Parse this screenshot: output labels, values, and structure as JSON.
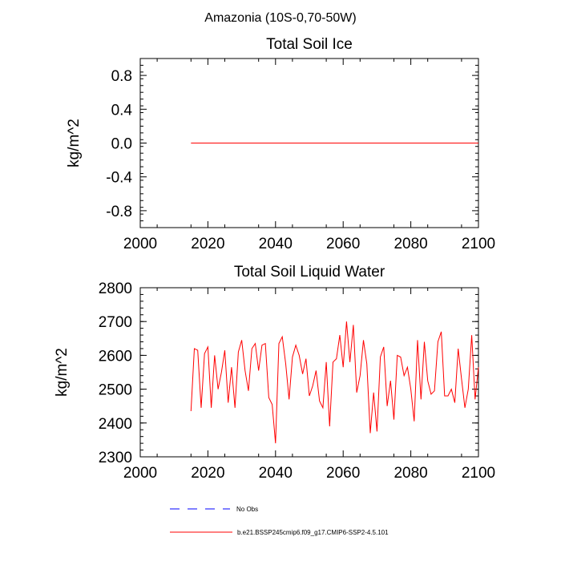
{
  "figure_title": "Amazonia (10S-0,70-50W)",
  "colors": {
    "model": "#ff0000",
    "obs": "#0000ff",
    "axis": "#000000"
  },
  "legend": {
    "obs_label": "No Obs",
    "model_label": "b.e21.BSSP245cmip6.f09_g17.CMIP6-SSP2-4.5.101"
  },
  "chart_data": [
    {
      "type": "line",
      "title": "Total Soil Ice",
      "xlabel": "",
      "ylabel": "kg/m^2",
      "xlim": [
        2000,
        2100
      ],
      "ylim": [
        -1.0,
        1.0
      ],
      "x_ticks": [
        2000,
        2020,
        2040,
        2060,
        2080,
        2100
      ],
      "y_ticks": [
        -0.8,
        -0.4,
        0.0,
        0.4,
        0.8
      ],
      "y_tick_labels": [
        "-0.8",
        "-0.4",
        "0.0",
        "0.4",
        "0.8"
      ],
      "series": [
        {
          "name": "b.e21.BSSP245cmip6.f09_g17.CMIP6-SSP2-4.5.101",
          "x_start": 2015,
          "values": [
            0,
            0,
            0,
            0,
            0,
            0,
            0,
            0,
            0,
            0,
            0,
            0,
            0,
            0,
            0,
            0,
            0,
            0,
            0,
            0,
            0,
            0,
            0,
            0,
            0,
            0,
            0,
            0,
            0,
            0,
            0,
            0,
            0,
            0,
            0,
            0,
            0,
            0,
            0,
            0,
            0,
            0,
            0,
            0,
            0,
            0,
            0,
            0,
            0,
            0,
            0,
            0,
            0,
            0,
            0,
            0,
            0,
            0,
            0,
            0,
            0,
            0,
            0,
            0,
            0,
            0,
            0,
            0,
            0,
            0,
            0,
            0,
            0,
            0,
            0,
            0,
            0,
            0,
            0,
            0,
            0,
            0,
            0,
            0,
            0,
            0
          ]
        }
      ]
    },
    {
      "type": "line",
      "title": "Total Soil Liquid Water",
      "xlabel": "",
      "ylabel": "kg/m^2",
      "xlim": [
        2000,
        2100
      ],
      "ylim": [
        2300,
        2800
      ],
      "x_ticks": [
        2000,
        2020,
        2040,
        2060,
        2080,
        2100
      ],
      "y_ticks": [
        2300,
        2400,
        2500,
        2600,
        2700,
        2800
      ],
      "y_tick_labels": [
        "2300",
        "2400",
        "2500",
        "2600",
        "2700",
        "2800"
      ],
      "series": [
        {
          "name": "b.e21.BSSP245cmip6.f09_g17.CMIP6-SSP2-4.5.101",
          "x_start": 2015,
          "values": [
            2435,
            2620,
            2615,
            2445,
            2605,
            2625,
            2445,
            2600,
            2500,
            2550,
            2615,
            2460,
            2565,
            2445,
            2610,
            2645,
            2555,
            2495,
            2620,
            2635,
            2555,
            2630,
            2635,
            2475,
            2455,
            2340,
            2635,
            2655,
            2575,
            2470,
            2595,
            2630,
            2600,
            2545,
            2590,
            2480,
            2510,
            2555,
            2465,
            2445,
            2580,
            2390,
            2580,
            2590,
            2660,
            2565,
            2700,
            2580,
            2690,
            2490,
            2540,
            2645,
            2575,
            2370,
            2490,
            2375,
            2595,
            2625,
            2450,
            2525,
            2410,
            2600,
            2595,
            2540,
            2565,
            2500,
            2405,
            2645,
            2470,
            2640,
            2525,
            2485,
            2495,
            2640,
            2670,
            2480,
            2480,
            2500,
            2460,
            2620,
            2530,
            2445,
            2500,
            2660,
            2470,
            2565
          ]
        }
      ]
    }
  ]
}
